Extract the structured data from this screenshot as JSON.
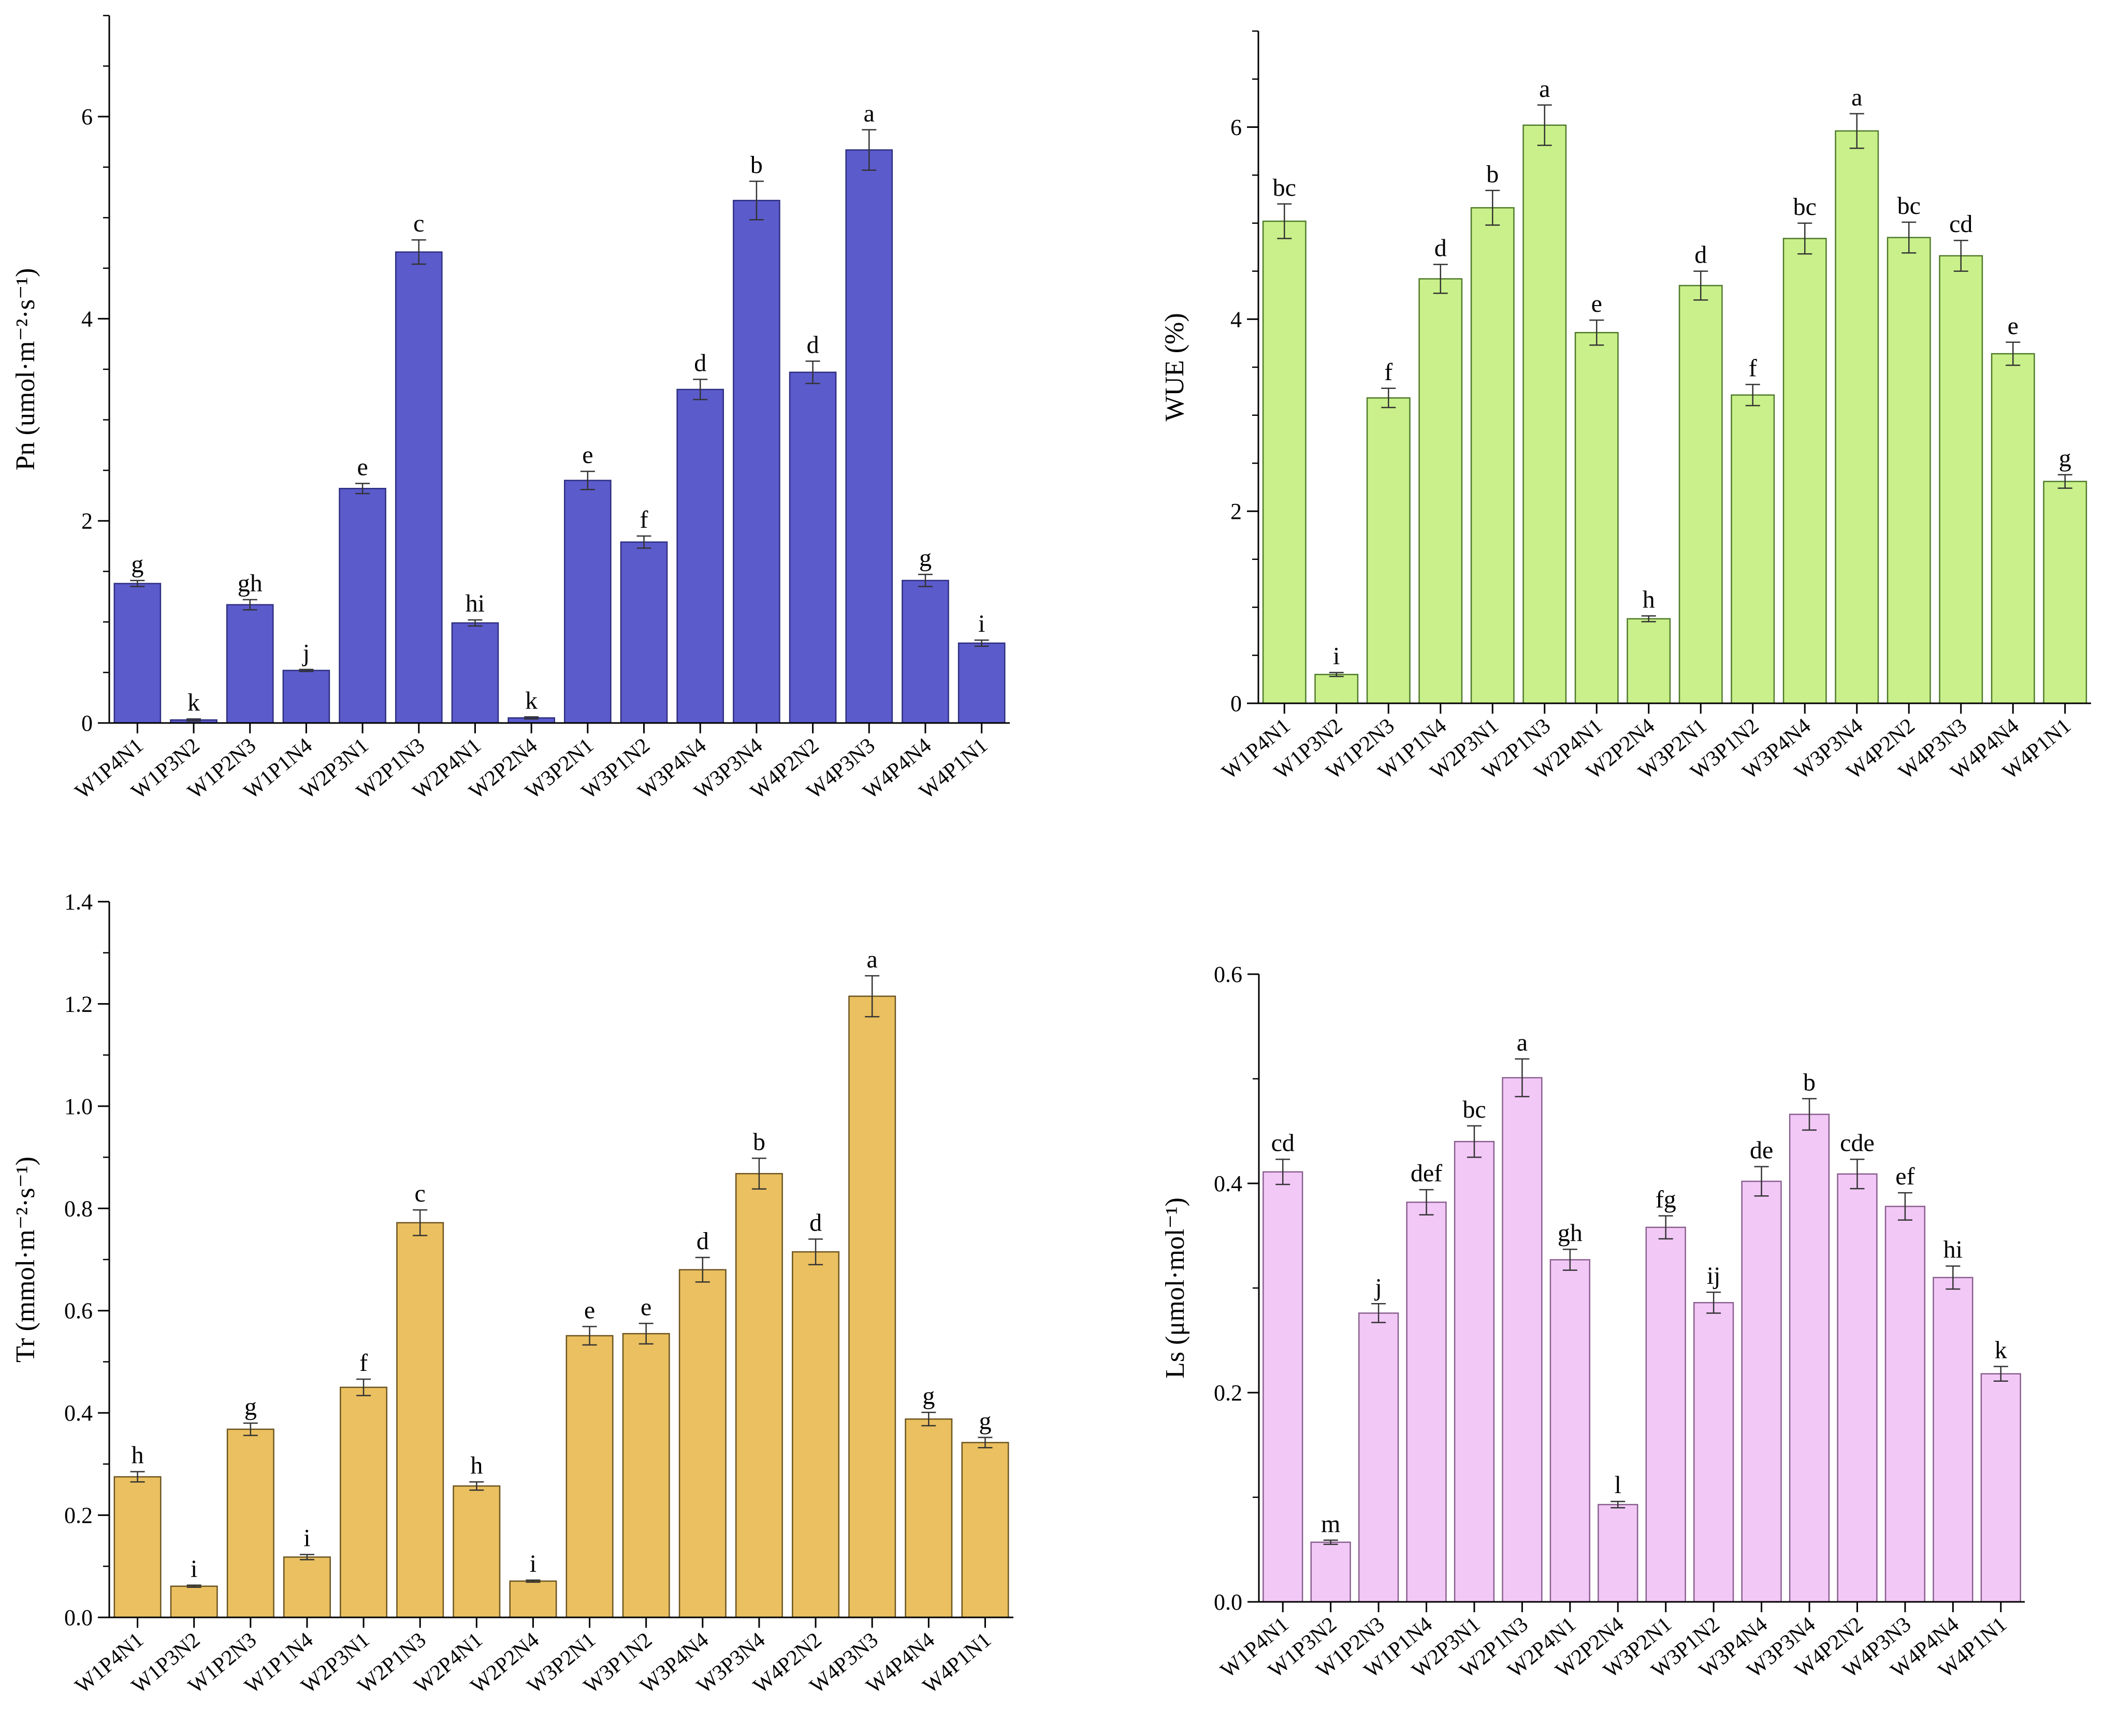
{
  "categories": [
    "W1P4N1",
    "W1P3N2",
    "W1P2N3",
    "W1P1N4",
    "W2P3N1",
    "W2P1N3",
    "W2P4N1",
    "W2P2N4",
    "W3P2N1",
    "W3P1N2",
    "W3P4N4",
    "W3P3N4",
    "W4P2N2",
    "W4P3N3",
    "W4P4N4",
    "W4P1N1"
  ],
  "chart_data": [
    {
      "id": "pn",
      "type": "bar",
      "ylabel": "Pn (umol·m⁻²·s⁻¹)",
      "ylim": [
        0,
        7
      ],
      "yticks": [
        0,
        2,
        4,
        6
      ],
      "tick_labels": [
        "0",
        "2",
        "4",
        "6"
      ],
      "color": "#5b5bcc",
      "edge": "#2e2e80",
      "values": [
        1.38,
        0.03,
        1.17,
        0.52,
        2.32,
        4.66,
        0.99,
        0.05,
        2.4,
        1.79,
        3.3,
        5.17,
        3.47,
        5.67,
        1.41,
        0.79
      ],
      "errors": [
        0.03,
        0.01,
        0.05,
        0.01,
        0.05,
        0.12,
        0.03,
        0.01,
        0.09,
        0.06,
        0.1,
        0.19,
        0.11,
        0.2,
        0.06,
        0.03
      ],
      "letters": [
        "g",
        "k",
        "gh",
        "j",
        "e",
        "c",
        "hi",
        "k",
        "e",
        "f",
        "d",
        "b",
        "d",
        "a",
        "g",
        "i"
      ]
    },
    {
      "id": "wue",
      "type": "bar",
      "ylabel": "WUE (%)",
      "ylim": [
        0,
        7
      ],
      "yticks": [
        0,
        2,
        4,
        6
      ],
      "tick_labels": [
        "0",
        "2",
        "4",
        "6"
      ],
      "color": "#c9f08a",
      "edge": "#4f7a2a",
      "values": [
        5.02,
        0.3,
        3.18,
        4.42,
        5.16,
        6.02,
        3.86,
        0.88,
        4.35,
        3.21,
        4.84,
        5.96,
        4.85,
        4.66,
        3.64,
        2.31
      ],
      "errors": [
        0.18,
        0.02,
        0.1,
        0.15,
        0.18,
        0.21,
        0.13,
        0.03,
        0.15,
        0.11,
        0.16,
        0.18,
        0.16,
        0.16,
        0.12,
        0.07
      ],
      "letters": [
        "bc",
        "i",
        "f",
        "d",
        "b",
        "a",
        "e",
        "h",
        "d",
        "f",
        "bc",
        "a",
        "bc",
        "cd",
        "e",
        "g"
      ]
    },
    {
      "id": "tr",
      "type": "bar",
      "ylabel": "Tr (mmol·m⁻²·s⁻¹)",
      "ylim": [
        0,
        1.4
      ],
      "yticks": [
        0,
        0.2,
        0.4,
        0.6,
        0.8,
        1.0,
        1.2,
        1.4
      ],
      "tick_labels": [
        "0.0",
        "0.2",
        "0.4",
        "0.6",
        "0.8",
        "1.0",
        "1.2",
        "1.4"
      ],
      "color": "#eac060",
      "edge": "#6b5420",
      "values": [
        0.275,
        0.061,
        0.368,
        0.118,
        0.45,
        0.772,
        0.257,
        0.071,
        0.551,
        0.555,
        0.68,
        0.868,
        0.715,
        1.215,
        0.388,
        0.342
      ],
      "errors": [
        0.01,
        0.002,
        0.012,
        0.005,
        0.016,
        0.025,
        0.008,
        0.002,
        0.018,
        0.02,
        0.024,
        0.03,
        0.025,
        0.04,
        0.013,
        0.01
      ],
      "letters": [
        "h",
        "i",
        "g",
        "i",
        "f",
        "c",
        "h",
        "i",
        "e",
        "e",
        "d",
        "b",
        "d",
        "a",
        "g",
        "g"
      ]
    },
    {
      "id": "ls",
      "type": "bar",
      "ylabel": "Ls (μmol·mol⁻¹)",
      "ylim": [
        0,
        0.6
      ],
      "yticks": [
        0,
        0.2,
        0.4,
        0.6
      ],
      "tick_labels": [
        "0.0",
        "0.2",
        "0.4",
        "0.6"
      ],
      "color": "#f2c8f7",
      "edge": "#8a5f8f",
      "values": [
        0.411,
        0.057,
        0.276,
        0.382,
        0.44,
        0.501,
        0.327,
        0.093,
        0.358,
        0.286,
        0.402,
        0.466,
        0.409,
        0.378,
        0.31,
        0.218
      ],
      "errors": [
        0.012,
        0.002,
        0.009,
        0.012,
        0.015,
        0.018,
        0.01,
        0.003,
        0.011,
        0.01,
        0.014,
        0.015,
        0.014,
        0.013,
        0.011,
        0.007
      ],
      "letters": [
        "cd",
        "m",
        "j",
        "def",
        "bc",
        "a",
        "gh",
        "l",
        "fg",
        "ij",
        "de",
        "b",
        "cde",
        "ef",
        "hi",
        "k"
      ]
    }
  ]
}
